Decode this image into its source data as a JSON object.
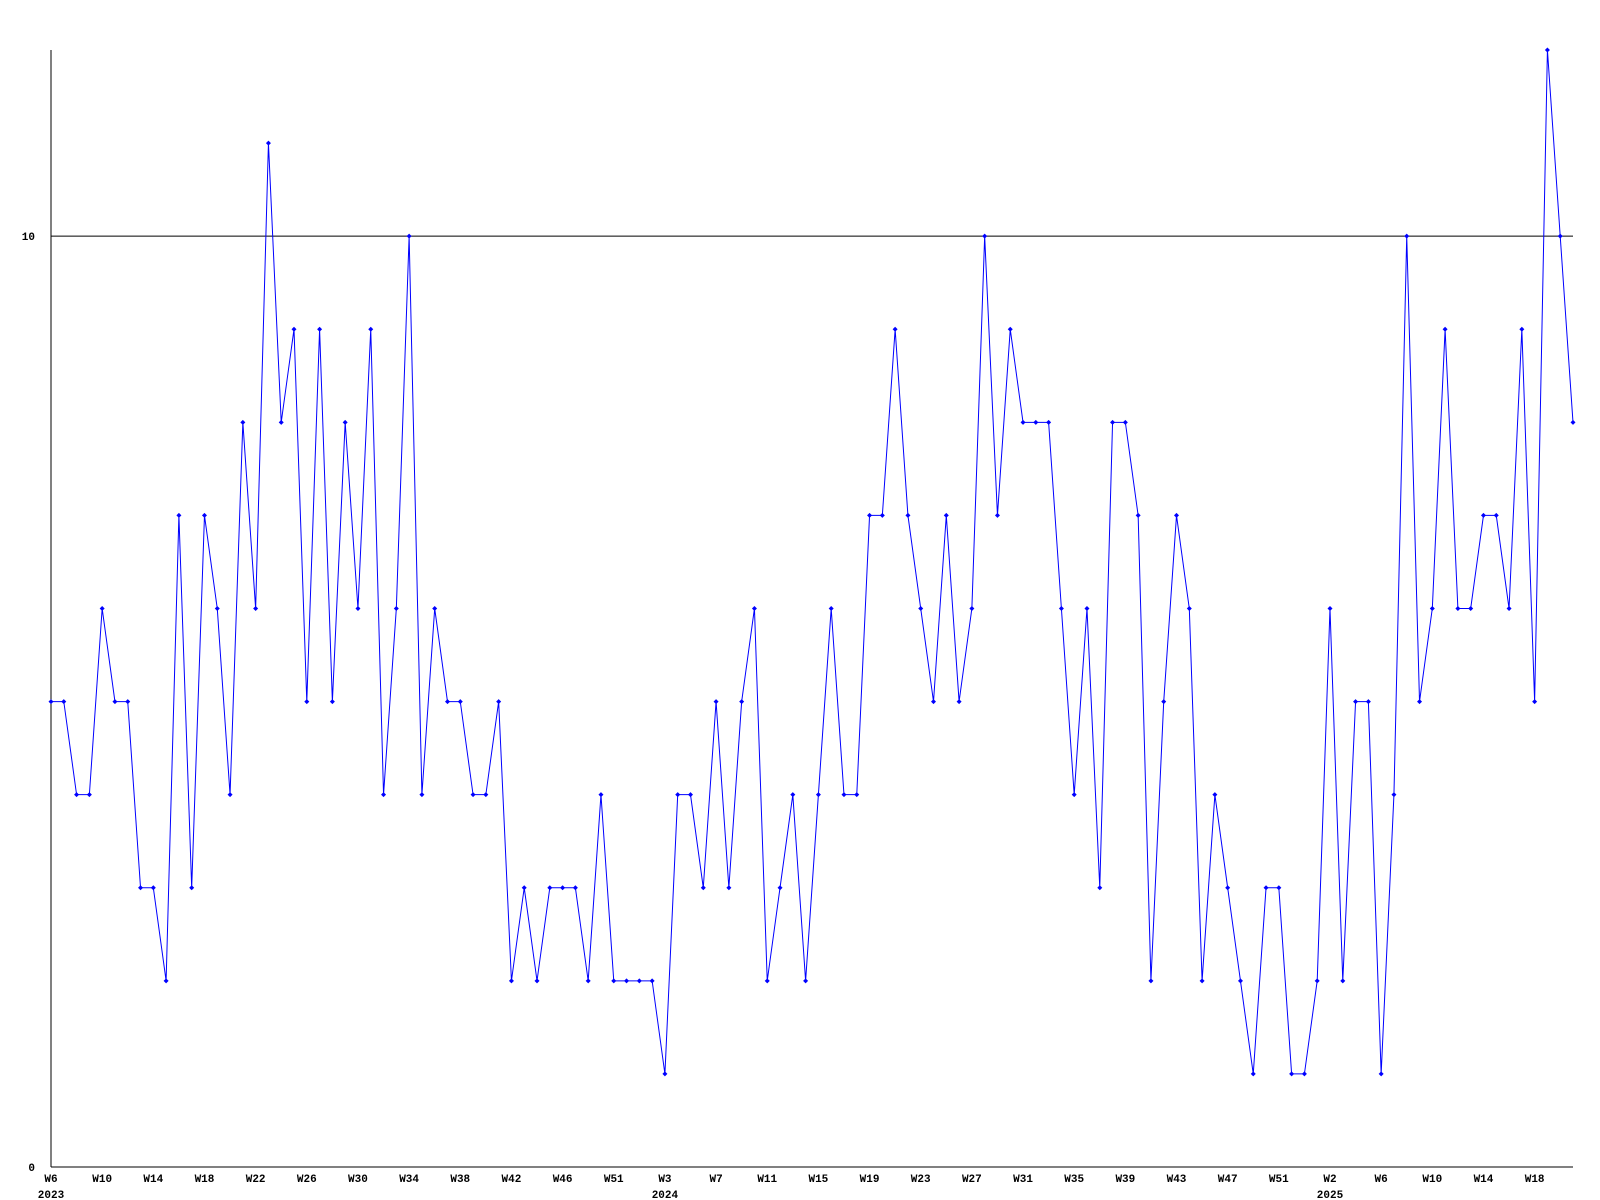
{
  "chart_data": {
    "type": "line",
    "categories": [
      "W6",
      null,
      null,
      null,
      "W10",
      null,
      null,
      null,
      "W14",
      null,
      null,
      null,
      "W18",
      null,
      null,
      null,
      "W22",
      null,
      null,
      null,
      "W26",
      null,
      null,
      null,
      "W30",
      null,
      null,
      null,
      "W34",
      null,
      null,
      null,
      "W38",
      null,
      null,
      null,
      "W42",
      null,
      null,
      null,
      "W46",
      null,
      null,
      null,
      "W51",
      null,
      null,
      null,
      "W3",
      null,
      null,
      null,
      "W7",
      null,
      null,
      null,
      "W11",
      null,
      null,
      null,
      "W15",
      null,
      null,
      null,
      "W19",
      null,
      null,
      null,
      "W23",
      null,
      null,
      null,
      "W27",
      null,
      null,
      null,
      "W31",
      null,
      null,
      null,
      "W35",
      null,
      null,
      null,
      "W39",
      null,
      null,
      null,
      "W43",
      null,
      null,
      null,
      "W47",
      null,
      null,
      null,
      "W51",
      null,
      null,
      null,
      "W2",
      null,
      null,
      null,
      "W6",
      null,
      null,
      null,
      "W10",
      null,
      null,
      null,
      "W14",
      null,
      null,
      null,
      "W18",
      null,
      null,
      null
    ],
    "year_categories": [
      "2023",
      null,
      null,
      null,
      null,
      null,
      null,
      null,
      null,
      null,
      null,
      null,
      null,
      null,
      null,
      null,
      null,
      null,
      null,
      null,
      null,
      null,
      null,
      null,
      null,
      null,
      null,
      null,
      null,
      null,
      null,
      null,
      null,
      null,
      null,
      null,
      null,
      null,
      null,
      null,
      null,
      null,
      null,
      null,
      null,
      null,
      null,
      null,
      "2024",
      null,
      null,
      null,
      null,
      null,
      null,
      null,
      null,
      null,
      null,
      null,
      null,
      null,
      null,
      null,
      null,
      null,
      null,
      null,
      null,
      null,
      null,
      null,
      null,
      null,
      null,
      null,
      null,
      null,
      null,
      null,
      null,
      null,
      null,
      null,
      null,
      null,
      null,
      null,
      null,
      null,
      null,
      null,
      null,
      null,
      null,
      null,
      null,
      null,
      null,
      null,
      "2025",
      null,
      null,
      null,
      null,
      null,
      null,
      null,
      null,
      null,
      null,
      null,
      null,
      null,
      null,
      null,
      null,
      null,
      null,
      null
    ],
    "values": [
      5,
      5,
      4,
      4,
      6,
      5,
      5,
      3,
      3,
      2,
      7,
      3,
      7,
      6,
      4,
      8,
      6,
      11,
      8,
      9,
      5,
      9,
      5,
      8,
      6,
      9,
      4,
      6,
      10,
      4,
      6,
      5,
      5,
      4,
      4,
      5,
      2,
      3,
      2,
      3,
      3,
      3,
      2,
      4,
      2,
      2,
      2,
      2,
      1,
      4,
      4,
      3,
      5,
      3,
      5,
      6,
      2,
      3,
      4,
      2,
      4,
      6,
      4,
      4,
      7,
      7,
      9,
      7,
      6,
      5,
      7,
      5,
      6,
      10,
      7,
      9,
      8,
      8,
      8,
      6,
      4,
      6,
      3,
      8,
      8,
      7,
      2,
      5,
      7,
      6,
      2,
      4,
      3,
      2,
      1,
      3,
      3,
      1,
      1,
      2,
      6,
      2,
      5,
      5,
      1,
      4,
      10,
      5,
      6,
      9,
      6,
      6,
      7,
      7,
      6,
      9,
      5,
      12,
      10,
      8
    ],
    "color": "#0000ff",
    "ylim": [
      0,
      12
    ],
    "yticks": [
      0,
      10
    ],
    "grid": true
  }
}
